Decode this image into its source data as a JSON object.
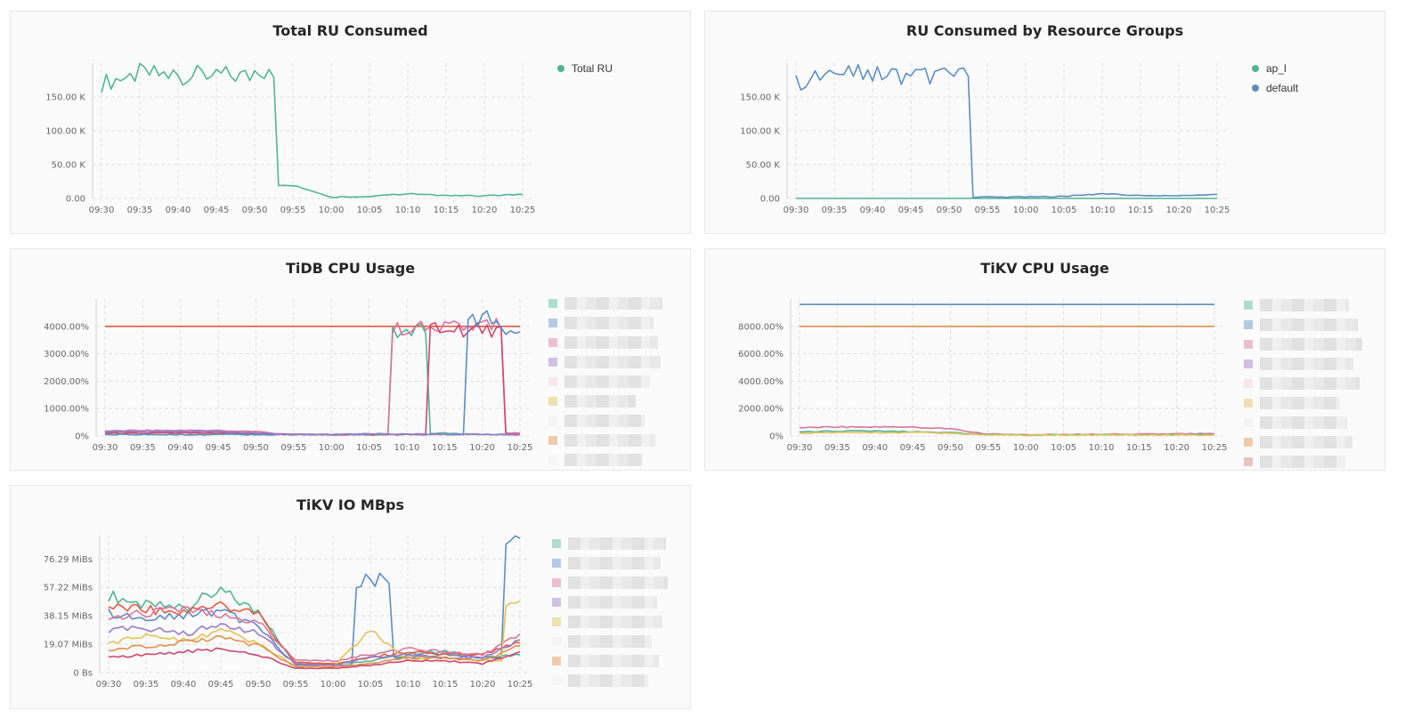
{
  "x_ticks": [
    "09:30",
    "09:35",
    "09:40",
    "09:45",
    "09:50",
    "09:55",
    "10:00",
    "10:05",
    "10:10",
    "10:15",
    "10:20",
    "10:25"
  ],
  "colors": {
    "green": "#52b594",
    "blue": "#5b8ec3",
    "red": "#e65a41",
    "pink": "#d9759f",
    "crimson": "#d1466a",
    "orange": "#e2904a",
    "yellow": "#e2c257",
    "purple": "#9c79c8"
  },
  "panels": [
    {
      "id": "total-ru",
      "title": "Total RU Consumed",
      "legend": [
        {
          "name": "Total RU",
          "color": "#52b594"
        }
      ],
      "chart_data": {
        "type": "line",
        "title": "Total RU Consumed",
        "x": [
          "09:30",
          "09:35",
          "09:40",
          "09:45",
          "09:50",
          "09:55",
          "10:00",
          "10:05",
          "10:10",
          "10:15",
          "10:20",
          "10:25"
        ],
        "yticks": [
          "0.00",
          "50.00 K",
          "100.00 K",
          "150.00 K"
        ],
        "ylim": [
          0,
          200000
        ],
        "series": [
          {
            "name": "Total RU",
            "color": "#52b594",
            "values": [
              170000,
              185000,
              182000,
              183000,
              180000,
              20000,
              2000,
              3000,
              7000,
              4000,
              4000,
              6000
            ]
          }
        ]
      }
    },
    {
      "id": "ru-groups",
      "title": "RU Consumed by Resource Groups",
      "legend": [
        {
          "name": "ap_l",
          "color": "#52b594"
        },
        {
          "name": "default",
          "color": "#5b8ec3"
        }
      ],
      "chart_data": {
        "type": "line",
        "title": "RU Consumed by Resource Groups",
        "x": [
          "09:30",
          "09:35",
          "09:40",
          "09:45",
          "09:50",
          "09:55",
          "10:00",
          "10:05",
          "10:10",
          "10:15",
          "10:20",
          "10:25"
        ],
        "yticks": [
          "0.00",
          "50.00 K",
          "100.00 K",
          "150.00 K"
        ],
        "ylim": [
          0,
          200000
        ],
        "series": [
          {
            "name": "ap_l",
            "color": "#52b594",
            "values": [
              0,
              0,
              0,
              0,
              0,
              0,
              0,
              0,
              0,
              0,
              0,
              0
            ]
          },
          {
            "name": "default",
            "color": "#5b8ec3",
            "values": [
              170000,
              185000,
              182000,
              183000,
              180000,
              2000,
              2000,
              3000,
              7000,
              4000,
              4000,
              6000
            ]
          }
        ]
      }
    },
    {
      "id": "tidb-cpu",
      "title": "TiDB CPU Usage",
      "chart_data": {
        "type": "line",
        "title": "TiDB CPU Usage",
        "x": [
          "09:30",
          "09:35",
          "09:40",
          "09:45",
          "09:50",
          "09:55",
          "10:00",
          "10:05",
          "10:10",
          "10:15",
          "10:20",
          "10:25"
        ],
        "yticks": [
          "0%",
          "1000.00%",
          "2000.00%",
          "3000.00%",
          "4000.00%"
        ],
        "ylim": [
          0,
          5000
        ],
        "series": [
          {
            "color": "#e65a41",
            "values": [
              4000,
              4000,
              4000,
              4000,
              4000,
              4000,
              4000,
              4000,
              4000,
              4000,
              4000,
              4000
            ]
          },
          {
            "color": "#52b594",
            "values": [
              150,
              150,
              150,
              150,
              100,
              50,
              50,
              80,
              3800,
              100,
              50,
              50
            ]
          },
          {
            "color": "#d9759f",
            "values": [
              180,
              200,
              200,
              200,
              150,
              50,
              50,
              50,
              3900,
              3900,
              4000,
              100
            ]
          },
          {
            "color": "#d1466a",
            "values": [
              100,
              100,
              100,
              100,
              80,
              50,
              50,
              50,
              50,
              3900,
              3900,
              50
            ]
          },
          {
            "color": "#5b8ec3",
            "values": [
              50,
              50,
              50,
              50,
              50,
              50,
              50,
              50,
              50,
              50,
              4300,
              3800
            ]
          },
          {
            "color": "#9c79c8",
            "values": [
              150,
              160,
              170,
              160,
              100,
              50,
              50,
              60,
              60,
              60,
              60,
              60
            ]
          }
        ]
      }
    },
    {
      "id": "tikv-cpu",
      "title": "TiKV CPU Usage",
      "chart_data": {
        "type": "line",
        "title": "TiKV CPU Usage",
        "x": [
          "09:30",
          "09:35",
          "09:40",
          "09:45",
          "09:50",
          "09:55",
          "10:00",
          "10:05",
          "10:10",
          "10:15",
          "10:20",
          "10:25"
        ],
        "yticks": [
          "0%",
          "2000.00%",
          "4000.00%",
          "6000.00%",
          "8000.00%"
        ],
        "ylim": [
          0,
          10000
        ],
        "series": [
          {
            "color": "#5b8ec3",
            "values": [
              9600,
              9600,
              9600,
              9600,
              9600,
              9600,
              9600,
              9600,
              9600,
              9600,
              9600,
              9600
            ]
          },
          {
            "color": "#e2904a",
            "values": [
              8000,
              8000,
              8000,
              8000,
              8000,
              8000,
              8000,
              8000,
              8000,
              8000,
              8000,
              8000
            ]
          },
          {
            "color": "#d9759f",
            "values": [
              600,
              650,
              650,
              650,
              500,
              150,
              100,
              100,
              120,
              120,
              150,
              150
            ]
          },
          {
            "color": "#52b594",
            "values": [
              300,
              350,
              350,
              300,
              250,
              80,
              80,
              80,
              90,
              90,
              100,
              100
            ]
          },
          {
            "color": "#e2c257",
            "values": [
              200,
              250,
              250,
              250,
              200,
              60,
              60,
              60,
              70,
              70,
              80,
              80
            ]
          }
        ]
      }
    },
    {
      "id": "tikv-io",
      "title": "TiKV IO MBps",
      "chart_data": {
        "type": "line",
        "title": "TiKV IO MBps",
        "x": [
          "09:30",
          "09:35",
          "09:40",
          "09:45",
          "09:50",
          "09:55",
          "10:00",
          "10:05",
          "10:10",
          "10:15",
          "10:20",
          "10:25"
        ],
        "yticks": [
          "0 Bs",
          "19.07 MiBs",
          "38.15 MiBs",
          "57.22 MiBs",
          "76.29 MiBs"
        ],
        "ylim": [
          0,
          92
        ],
        "series": [
          {
            "color": "#52b594",
            "values": [
              52,
              45,
              44,
              55,
              40,
              6,
              6,
              8,
              12,
              14,
              10,
              12
            ]
          },
          {
            "color": "#5b8ec3",
            "values": [
              40,
              35,
              38,
              42,
              30,
              5,
              5,
              62,
              10,
              12,
              10,
              90
            ]
          },
          {
            "color": "#e65a41",
            "values": [
              44,
              42,
              40,
              46,
              38,
              7,
              6,
              10,
              14,
              12,
              12,
              20
            ]
          },
          {
            "color": "#d9759f",
            "values": [
              36,
              40,
              42,
              38,
              34,
              8,
              8,
              12,
              16,
              14,
              12,
              26
            ]
          },
          {
            "color": "#e2c257",
            "values": [
              20,
              25,
              22,
              28,
              20,
              4,
              4,
              28,
              8,
              10,
              8,
              48
            ]
          },
          {
            "color": "#9c79c8",
            "values": [
              28,
              30,
              26,
              32,
              26,
              6,
              5,
              10,
              12,
              10,
              10,
              22
            ]
          },
          {
            "color": "#e2904a",
            "values": [
              15,
              18,
              20,
              24,
              18,
              4,
              4,
              6,
              10,
              10,
              8,
              18
            ]
          },
          {
            "color": "#d1466a",
            "values": [
              10,
              12,
              14,
              16,
              12,
              3,
              3,
              5,
              8,
              8,
              6,
              14
            ]
          }
        ]
      }
    }
  ]
}
